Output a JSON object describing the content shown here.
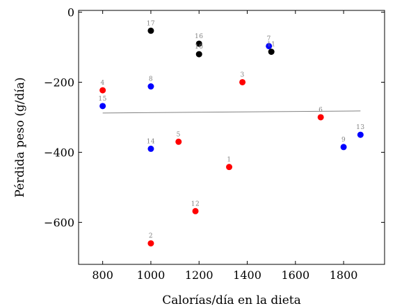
{
  "chart_data": {
    "type": "scatter",
    "xlabel": "Calorías/día en la dieta",
    "ylabel": "Pérdida peso (g/día)",
    "xlim": [
      700,
      1970
    ],
    "ylim": [
      -720,
      5
    ],
    "xticks": [
      800,
      1000,
      1200,
      1400,
      1600,
      1800
    ],
    "yticks": [
      0,
      -200,
      -400,
      -600
    ],
    "colors": {
      "red": "#ff0000",
      "blue": "#0000ff",
      "black": "#000000",
      "fit_line": "#808080",
      "label": "#7f7f7f"
    },
    "points": [
      {
        "label": "1",
        "x": 1325,
        "y": -442,
        "color": "red"
      },
      {
        "label": "2",
        "x": 1000,
        "y": -660,
        "color": "red"
      },
      {
        "label": "3",
        "x": 1380,
        "y": -200,
        "color": "red"
      },
      {
        "label": "4",
        "x": 800,
        "y": -223,
        "color": "red"
      },
      {
        "label": "5",
        "x": 1115,
        "y": -370,
        "color": "red"
      },
      {
        "label": "6",
        "x": 1705,
        "y": -300,
        "color": "red"
      },
      {
        "label": "7",
        "x": 1490,
        "y": -97,
        "color": "blue"
      },
      {
        "label": "8",
        "x": 1000,
        "y": -212,
        "color": "blue"
      },
      {
        "label": "9",
        "x": 1800,
        "y": -385,
        "color": "blue"
      },
      {
        "label": "10",
        "x": 1200,
        "y": -120,
        "color": "black"
      },
      {
        "label": "11",
        "x": 1500,
        "y": -113,
        "color": "black"
      },
      {
        "label": "12",
        "x": 1185,
        "y": -568,
        "color": "red"
      },
      {
        "label": "13",
        "x": 1870,
        "y": -350,
        "color": "blue"
      },
      {
        "label": "14",
        "x": 1000,
        "y": -390,
        "color": "blue"
      },
      {
        "label": "15",
        "x": 800,
        "y": -268,
        "color": "blue"
      },
      {
        "label": "16",
        "x": 1200,
        "y": -90,
        "color": "black"
      },
      {
        "label": "17",
        "x": 1000,
        "y": -53,
        "color": "black"
      }
    ],
    "fit_line": {
      "x": [
        800,
        1870
      ],
      "y": [
        -288,
        -282
      ]
    }
  }
}
